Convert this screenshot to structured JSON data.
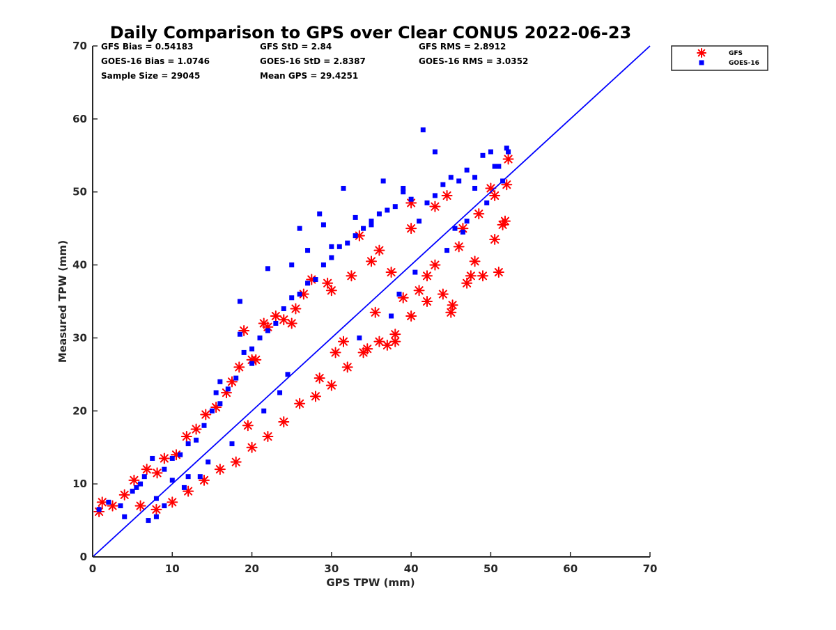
{
  "chart_data": {
    "type": "scatter",
    "title": "Daily Comparison to GPS over Clear CONUS 2022-06-23",
    "xlabel": "GPS TPW (mm)",
    "ylabel": "Measured TPW (mm)",
    "xlim": [
      0,
      70
    ],
    "ylim": [
      0,
      70
    ],
    "xticks": [
      "0",
      "10",
      "20",
      "30",
      "40",
      "50",
      "60",
      "70"
    ],
    "yticks": [
      "0",
      "10",
      "20",
      "30",
      "40",
      "50",
      "60",
      "70"
    ],
    "grid": false,
    "legend_position": "outside-top-right",
    "stats": [
      [
        "GFS Bias = 0.54183",
        "GFS StD = 2.84",
        "GFS RMS = 2.8912"
      ],
      [
        "GOES-16 Bias = 1.0746",
        "GOES-16 StD = 2.8387",
        "GOES-16 RMS = 3.0352"
      ],
      [
        "Sample Size = 29045",
        "Mean GPS = 29.4251"
      ]
    ],
    "reference_line": {
      "x": [
        0,
        70
      ],
      "y": [
        0,
        70
      ],
      "color": "#0000ff"
    },
    "series": [
      {
        "name": "GFS",
        "marker": "asterisk",
        "color": "#ff0000",
        "x": [
          0.8,
          1.2,
          2.5,
          4.0,
          5.2,
          6.8,
          8.1,
          9.0,
          10.5,
          11.8,
          13.0,
          14.2,
          15.5,
          16.8,
          17.5,
          18.4,
          19.0,
          19.5,
          20.5,
          21.5,
          22.0,
          23.0,
          24.0,
          25.5,
          26.5,
          27.5,
          28.5,
          29.5,
          30.5,
          31.5,
          32.5,
          33.5,
          34.5,
          35.5,
          36.0,
          37.0,
          37.5,
          38.0,
          39.0,
          40.0,
          41.0,
          42.0,
          43.0,
          44.0,
          45.0,
          45.2,
          46.0,
          47.0,
          47.5,
          48.0,
          49.0,
          50.0,
          50.5,
          51.0,
          51.5,
          51.8,
          52.0,
          52.2,
          44.5,
          46.5,
          48.5,
          50.5,
          20.0,
          22.0,
          24.0,
          26.0,
          28.0,
          30.0,
          32.0,
          34.0,
          36.0,
          38.0,
          40.0,
          42.0,
          14.0,
          16.0,
          18.0,
          12.0,
          10.0,
          8.0,
          6.0,
          20.0,
          25.0,
          30.0,
          35.0,
          40.0,
          43.0
        ],
        "y": [
          6.2,
          7.5,
          7.0,
          8.5,
          10.5,
          12.0,
          11.5,
          13.5,
          14.0,
          16.5,
          17.5,
          19.5,
          20.5,
          22.5,
          24.0,
          26.0,
          31.0,
          18.0,
          27.0,
          32.0,
          31.5,
          33.0,
          32.5,
          34.0,
          36.0,
          38.0,
          24.5,
          37.5,
          28.0,
          29.5,
          38.5,
          44.0,
          28.5,
          33.5,
          42.0,
          29.0,
          39.0,
          29.5,
          35.5,
          48.5,
          36.5,
          38.5,
          40.0,
          36.0,
          33.5,
          34.5,
          42.5,
          37.5,
          38.5,
          40.5,
          38.5,
          50.5,
          43.5,
          39.0,
          45.5,
          46.0,
          51.0,
          54.5,
          49.5,
          45.0,
          47.0,
          49.5,
          15.0,
          16.5,
          18.5,
          21.0,
          22.0,
          23.5,
          26.0,
          28.0,
          29.5,
          30.5,
          33.0,
          35.0,
          10.5,
          12.0,
          13.0,
          9.0,
          7.5,
          6.5,
          7.0,
          27.0,
          32.0,
          36.5,
          40.5,
          45.0,
          48.0
        ]
      },
      {
        "name": "GOES-16",
        "marker": "square",
        "color": "#0000ff",
        "x": [
          0.8,
          2.0,
          3.5,
          4.0,
          5.0,
          6.0,
          7.0,
          8.0,
          9.0,
          10.0,
          11.0,
          12.0,
          13.0,
          14.0,
          15.0,
          15.5,
          16.0,
          17.0,
          18.0,
          18.5,
          19.0,
          20.0,
          21.0,
          22.0,
          23.0,
          24.0,
          25.0,
          26.0,
          27.0,
          28.0,
          29.0,
          30.0,
          31.0,
          32.0,
          33.0,
          34.0,
          35.0,
          36.0,
          37.0,
          38.0,
          39.0,
          40.0,
          41.0,
          42.0,
          43.0,
          44.0,
          45.0,
          46.0,
          47.0,
          48.0,
          49.0,
          50.0,
          51.0,
          52.0,
          52.2,
          41.5,
          43.0,
          50.5,
          36.5,
          31.5,
          30.0,
          28.5,
          26.0,
          22.0,
          18.5,
          20.0,
          16.0,
          35.0,
          46.5,
          48.0,
          39.0,
          33.0,
          25.0,
          27.0,
          29.0,
          12.0,
          10.0,
          8.0,
          7.5,
          6.5,
          5.5,
          9.0,
          11.5,
          13.5,
          14.5,
          17.5,
          21.5,
          23.5,
          24.5,
          33.5,
          37.5,
          38.5,
          40.5,
          44.5,
          45.5,
          47.0,
          49.5,
          51.5
        ],
        "y": [
          6.5,
          7.5,
          7.0,
          5.5,
          9.0,
          10.0,
          5.0,
          5.5,
          12.0,
          13.5,
          14.0,
          15.5,
          16.0,
          18.0,
          20.0,
          22.5,
          24.0,
          23.0,
          24.5,
          35.0,
          28.0,
          26.5,
          30.0,
          31.0,
          32.0,
          34.0,
          35.5,
          36.0,
          37.5,
          38.0,
          40.0,
          41.0,
          42.5,
          43.0,
          44.0,
          45.0,
          46.0,
          47.0,
          47.5,
          48.0,
          50.0,
          49.0,
          46.0,
          48.5,
          49.5,
          51.0,
          52.0,
          51.5,
          53.0,
          52.0,
          55.0,
          55.5,
          53.5,
          56.0,
          55.5,
          58.5,
          55.5,
          53.5,
          51.5,
          50.5,
          42.5,
          47.0,
          45.0,
          39.5,
          30.5,
          28.5,
          21.0,
          45.5,
          44.5,
          50.5,
          50.5,
          46.5,
          40.0,
          42.0,
          45.5,
          11.0,
          10.5,
          8.0,
          13.5,
          11.0,
          9.5,
          7.0,
          9.5,
          11.0,
          13.0,
          15.5,
          20.0,
          22.5,
          25.0,
          30.0,
          33.0,
          36.0,
          39.0,
          42.0,
          45.0,
          46.0,
          48.5,
          51.5
        ]
      }
    ]
  }
}
